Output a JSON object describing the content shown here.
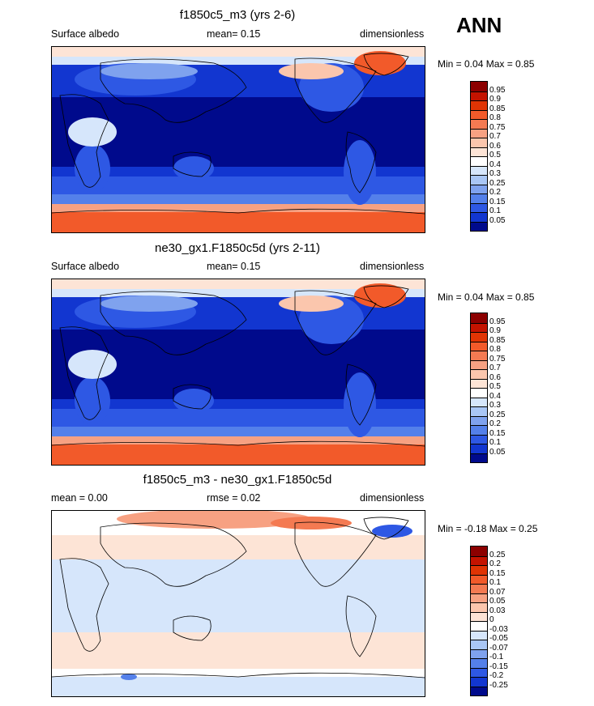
{
  "season": "ANN",
  "panels": [
    {
      "title": "f1850c5_m3 (yrs 2-6)",
      "left_label": "Surface albedo",
      "center_label": "mean=   0.15",
      "right_label": "dimensionless",
      "minmax": "Min =   0.04 Max =   0.85",
      "colorbar": {
        "labels": [
          "0.95",
          "0.9",
          "0.85",
          "0.8",
          "0.75",
          "0.7",
          "0.6",
          "0.5",
          "0.4",
          "0.3",
          "0.25",
          "0.2",
          "0.15",
          "0.1",
          "0.05"
        ],
        "colors": [
          "#8c0000",
          "#c41300",
          "#e03404",
          "#f25a2a",
          "#f47a52",
          "#f7a182",
          "#fbc6ad",
          "#fde4d6",
          "#ffffff",
          "#d6e6fb",
          "#a9c6f5",
          "#7fa2ee",
          "#5480ea",
          "#2e58e4",
          "#1236d0",
          "#000a8c"
        ]
      }
    },
    {
      "title": "ne30_gx1.F1850c5d (yrs 2-11)",
      "left_label": "Surface albedo",
      "center_label": "mean=   0.15",
      "right_label": "dimensionless",
      "minmax": "Min =   0.04 Max =   0.85",
      "colorbar": {
        "labels": [
          "0.95",
          "0.9",
          "0.85",
          "0.8",
          "0.75",
          "0.7",
          "0.6",
          "0.5",
          "0.4",
          "0.3",
          "0.25",
          "0.2",
          "0.15",
          "0.1",
          "0.05"
        ],
        "colors": [
          "#8c0000",
          "#c41300",
          "#e03404",
          "#f25a2a",
          "#f47a52",
          "#f7a182",
          "#fbc6ad",
          "#fde4d6",
          "#ffffff",
          "#d6e6fb",
          "#a9c6f5",
          "#7fa2ee",
          "#5480ea",
          "#2e58e4",
          "#1236d0",
          "#000a8c"
        ]
      }
    },
    {
      "title": "f1850c5_m3 - ne30_gx1.F1850c5d",
      "left_label": "mean =   0.00",
      "center_label": "rmse =   0.02",
      "right_label": "dimensionless",
      "minmax": "Min =  -0.18 Max =   0.25",
      "colorbar": {
        "labels": [
          "0.25",
          "0.2",
          "0.15",
          "0.1",
          "0.07",
          "0.05",
          "0.03",
          "0",
          "-0.03",
          "-0.05",
          "-0.07",
          "-0.1",
          "-0.15",
          "-0.2",
          "-0.25"
        ],
        "colors": [
          "#8c0000",
          "#c41300",
          "#e03404",
          "#f25a2a",
          "#f47a52",
          "#f7a182",
          "#fbc6ad",
          "#fde4d6",
          "#ffffff",
          "#d6e6fb",
          "#a9c6f5",
          "#7fa2ee",
          "#5480ea",
          "#2e58e4",
          "#1236d0",
          "#000a8c"
        ]
      }
    }
  ]
}
